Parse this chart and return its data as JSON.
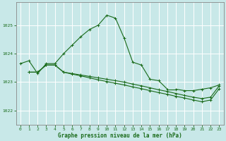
{
  "title": "Graphe pression niveau de la mer (hPa)",
  "background_color": "#c8e8e8",
  "grid_color": "#ffffff",
  "line_color": "#1a6b1a",
  "ylim": [
    1021.5,
    1025.8
  ],
  "yticks": [
    1022,
    1023,
    1024,
    1025
  ],
  "xlim": [
    -0.5,
    23.5
  ],
  "xticks": [
    0,
    1,
    2,
    3,
    4,
    5,
    6,
    7,
    8,
    9,
    10,
    11,
    12,
    13,
    14,
    15,
    16,
    17,
    18,
    19,
    20,
    21,
    22,
    23
  ],
  "series1_x": [
    0,
    1,
    2,
    3,
    4,
    5,
    6,
    7,
    8,
    9,
    10,
    11,
    12,
    13,
    14,
    15,
    16,
    17
  ],
  "series1_y": [
    1023.65,
    1023.75,
    1023.3,
    1023.65,
    1023.65,
    1024.0,
    1024.3,
    1024.6,
    1024.85,
    1025.0,
    1025.35,
    1025.25,
    1024.55,
    1023.7,
    1023.6,
    1023.1,
    1023.05,
    1022.75
  ],
  "series2_x": [
    18,
    19,
    20,
    21,
    22,
    23
  ],
  "series2_y": [
    1022.75,
    1022.7,
    1022.7,
    1022.75,
    1022.8,
    1022.9
  ],
  "series3_x": [
    1,
    2,
    3,
    4,
    5,
    6,
    7,
    8,
    9,
    10,
    11,
    12,
    13,
    14,
    15,
    16,
    17,
    18,
    19,
    20,
    21,
    22,
    23
  ],
  "series3_y": [
    1023.35,
    1023.35,
    1023.6,
    1023.6,
    1023.35,
    1023.3,
    1023.25,
    1023.2,
    1023.15,
    1023.1,
    1023.05,
    1023.0,
    1022.93,
    1022.87,
    1022.8,
    1022.73,
    1022.67,
    1022.6,
    1022.53,
    1022.47,
    1022.42,
    1022.47,
    1022.87
  ],
  "series4_x": [
    1,
    2,
    3,
    4,
    5,
    6,
    7,
    8,
    9,
    10,
    11,
    12,
    13,
    14,
    15,
    16,
    17,
    18,
    19,
    20,
    21,
    22,
    23
  ],
  "series4_y": [
    1023.35,
    1023.35,
    1023.6,
    1023.6,
    1023.35,
    1023.28,
    1023.22,
    1023.15,
    1023.08,
    1023.02,
    1022.96,
    1022.9,
    1022.83,
    1022.77,
    1022.7,
    1022.63,
    1022.57,
    1022.5,
    1022.44,
    1022.37,
    1022.31,
    1022.37,
    1022.77
  ]
}
